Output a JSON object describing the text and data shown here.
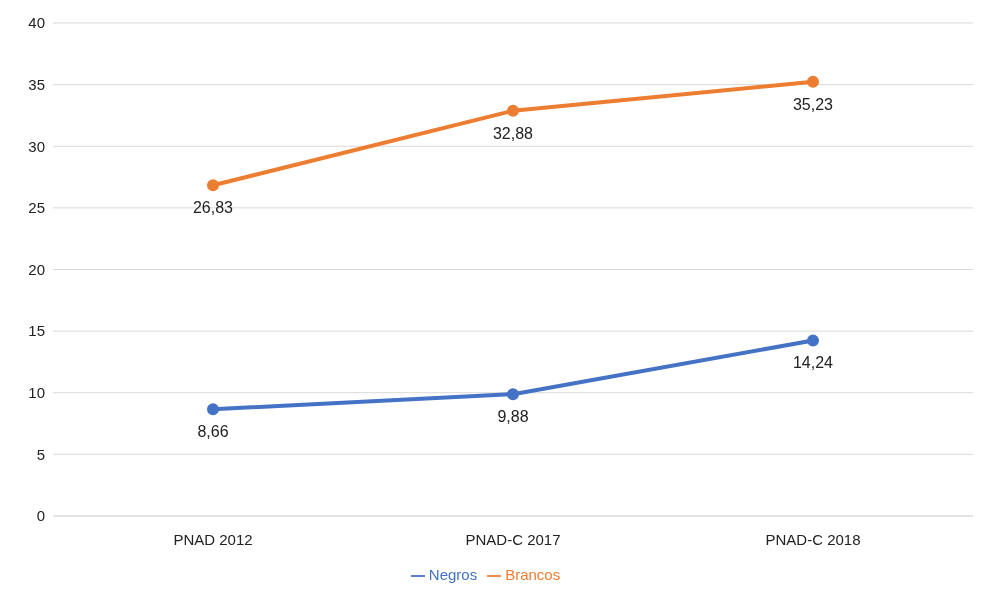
{
  "chart_data": {
    "type": "line",
    "categories": [
      "PNAD 2012",
      "PNAD-C 2017",
      "PNAD-C 2018"
    ],
    "series": [
      {
        "name": "Negros",
        "color": "#4472c4",
        "values": [
          8.66,
          9.88,
          14.24
        ],
        "value_labels": [
          "8,66",
          "9,88",
          "14,24"
        ]
      },
      {
        "name": "Brancos",
        "color": "#ed7d31",
        "values": [
          26.83,
          32.88,
          35.23
        ],
        "value_labels": [
          "26,83",
          "32,88",
          "35,23"
        ]
      }
    ],
    "ylim": [
      0,
      40
    ],
    "yticks": [
      0,
      5,
      10,
      15,
      20,
      25,
      30,
      35,
      40
    ],
    "grid": "y",
    "legend": "bottom",
    "marker": "circle",
    "line_style": "solid"
  }
}
